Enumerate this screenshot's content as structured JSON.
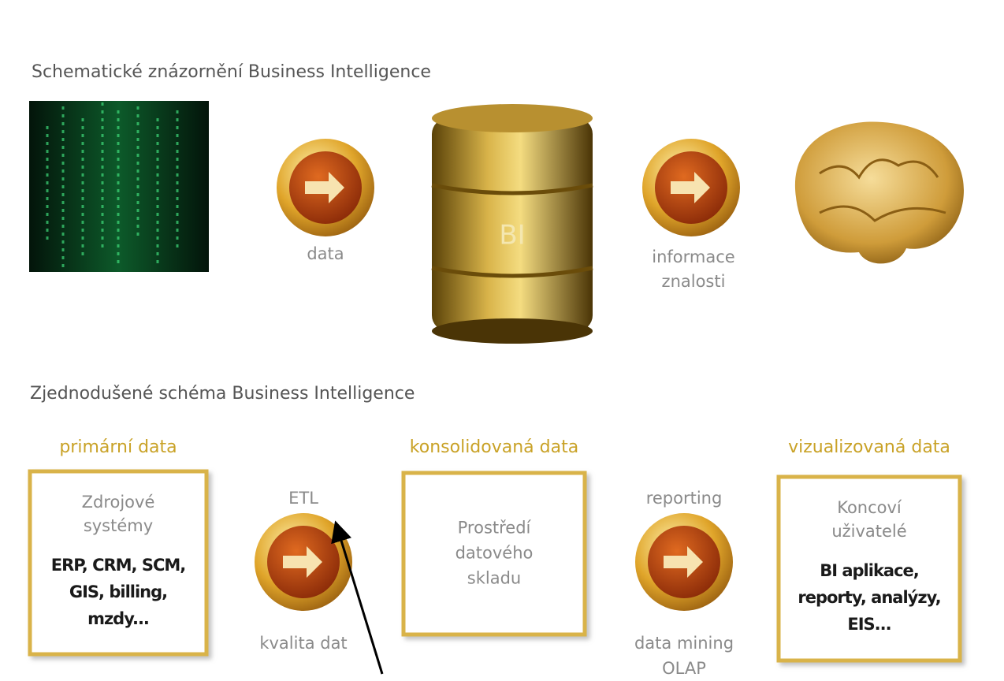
{
  "top": {
    "title": "Schematické znázornění Business Intelligence",
    "left_label": "data",
    "barrel_label": "BI",
    "right_label": [
      "informace",
      "znalosti"
    ]
  },
  "bottom": {
    "title": "Zjednodušené schéma Business Intelligence",
    "stages": [
      {
        "heading": "primární data",
        "box_title": [
          "Zdrojové",
          "systémy"
        ],
        "box_detail": [
          "ERP, CRM, SCM,",
          "GIS, billing,",
          "mzdy..."
        ]
      },
      {
        "heading": "konsolidovaná data",
        "box_title": [
          "Prostředí",
          "datového",
          "skladu"
        ],
        "box_detail": []
      },
      {
        "heading": "vizualizovaná data",
        "box_title": [
          "Koncoví",
          "uživatelé"
        ],
        "box_detail": [
          "BI aplikace,",
          "reporty, analýzy,",
          "EIS..."
        ]
      }
    ],
    "connectors": [
      {
        "above": "ETL",
        "below": [
          "kvalita dat"
        ]
      },
      {
        "above": "reporting",
        "below": [
          "data mining",
          "OLAP"
        ]
      }
    ]
  }
}
